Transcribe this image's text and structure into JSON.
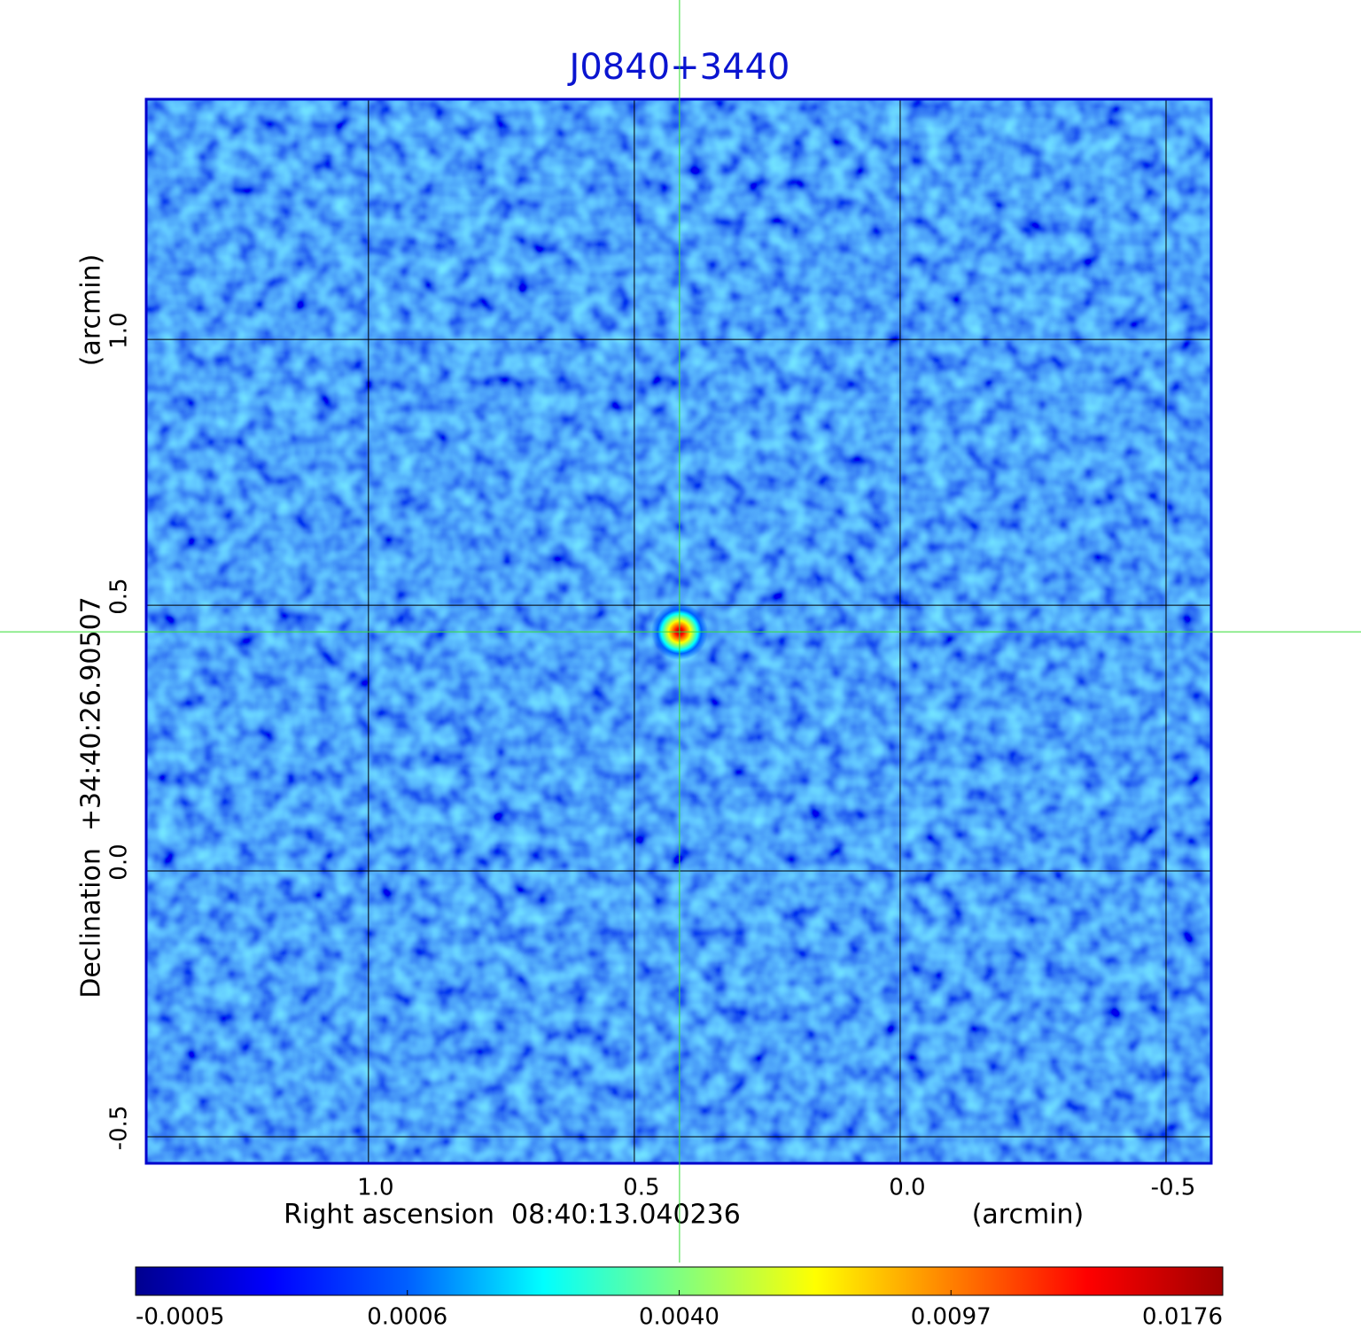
{
  "chart_data": {
    "type": "image",
    "title": "J0840+3440",
    "x_label": "Right ascension  08:40:13.040236",
    "x_unit": "(arcmin)",
    "y_label": "Declination  +34:40:26.90507",
    "y_unit": "(arcmin)",
    "xlim": [
      1.418,
      -0.585
    ],
    "ylim": [
      -0.55,
      1.452
    ],
    "xticks": [
      {
        "value": 1,
        "label": "1.0"
      },
      {
        "value": 0.5,
        "label": "0.5"
      },
      {
        "value": 0,
        "label": "0.0"
      },
      {
        "value": -0.5,
        "label": "-0.5"
      }
    ],
    "yticks": [
      {
        "value": -0.5,
        "label": "-0.5"
      },
      {
        "value": 0,
        "label": "0.0"
      },
      {
        "value": 0.5,
        "label": "0.5"
      },
      {
        "value": 1,
        "label": "1.0"
      }
    ],
    "grid": true,
    "crosshair": {
      "x": 0.415,
      "y": 0.45,
      "color": "#33dd33"
    },
    "source": {
      "x": 0.415,
      "y": 0.45,
      "peak": 0.0176
    },
    "colormap": [
      "#00008f",
      "#0000ff",
      "#0060ff",
      "#00ffff",
      "#80ff80",
      "#ffff00",
      "#ff8000",
      "#ff0000",
      "#a00000"
    ],
    "colorbar_ticks": [
      {
        "value": -0.0005,
        "label": "-0.0005"
      },
      {
        "value": 0.0006,
        "label": "0.0006"
      },
      {
        "value": 0.004,
        "label": "0.0040"
      },
      {
        "value": 0.0097,
        "label": "0.0097"
      },
      {
        "value": 0.0176,
        "label": "0.0176"
      }
    ]
  }
}
